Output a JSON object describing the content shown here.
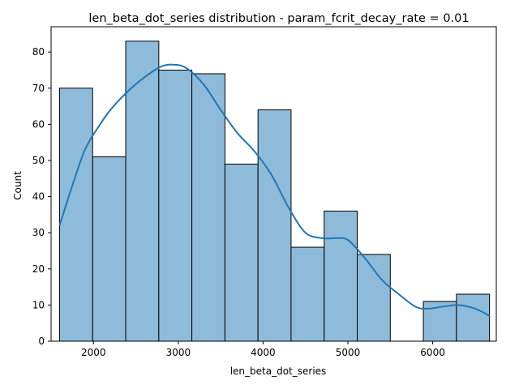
{
  "chart_data": {
    "type": "bar",
    "title": "len_beta_dot_series distribution - param_fcrit_decay_rate = 0.01",
    "xlabel": "len_beta_dot_series",
    "ylabel": "Count",
    "xlim": [
      1500,
      6750
    ],
    "ylim": [
      0,
      87
    ],
    "x_ticks": [
      2000,
      3000,
      4000,
      5000,
      6000
    ],
    "y_ticks": [
      0,
      10,
      20,
      30,
      40,
      50,
      60,
      70,
      80
    ],
    "bins": [
      {
        "start": 1600,
        "end": 1990,
        "count": 70
      },
      {
        "start": 1990,
        "end": 2380,
        "count": 51
      },
      {
        "start": 2380,
        "end": 2770,
        "count": 83
      },
      {
        "start": 2770,
        "end": 3160,
        "count": 75
      },
      {
        "start": 3160,
        "end": 3550,
        "count": 74
      },
      {
        "start": 3550,
        "end": 3940,
        "count": 49
      },
      {
        "start": 3940,
        "end": 4330,
        "count": 64
      },
      {
        "start": 4330,
        "end": 4720,
        "count": 26
      },
      {
        "start": 4720,
        "end": 5110,
        "count": 36
      },
      {
        "start": 5110,
        "end": 5500,
        "count": 24
      },
      {
        "start": 5500,
        "end": 5890,
        "count": 0
      },
      {
        "start": 5890,
        "end": 6280,
        "count": 11
      },
      {
        "start": 6280,
        "end": 6670,
        "count": 13
      }
    ],
    "kde": {
      "x": [
        1600,
        1750,
        1900,
        2050,
        2200,
        2400,
        2600,
        2800,
        2950,
        3100,
        3300,
        3500,
        3700,
        3900,
        4100,
        4300,
        4500,
        4700,
        4850,
        5000,
        5200,
        5400,
        5600,
        5800,
        5950,
        6100,
        6300,
        6500,
        6670
      ],
      "y": [
        32,
        43,
        53,
        59,
        64,
        69,
        73,
        76,
        76.5,
        75.5,
        71,
        64,
        57.5,
        52.5,
        46,
        37,
        30,
        28.5,
        28.5,
        28,
        23,
        17,
        13,
        9.5,
        9,
        9.5,
        10,
        9,
        7
      ]
    },
    "colors": {
      "bar_fill": "#8fbbdb",
      "bar_edge": "#000000",
      "kde_line": "#1f77b4"
    }
  }
}
